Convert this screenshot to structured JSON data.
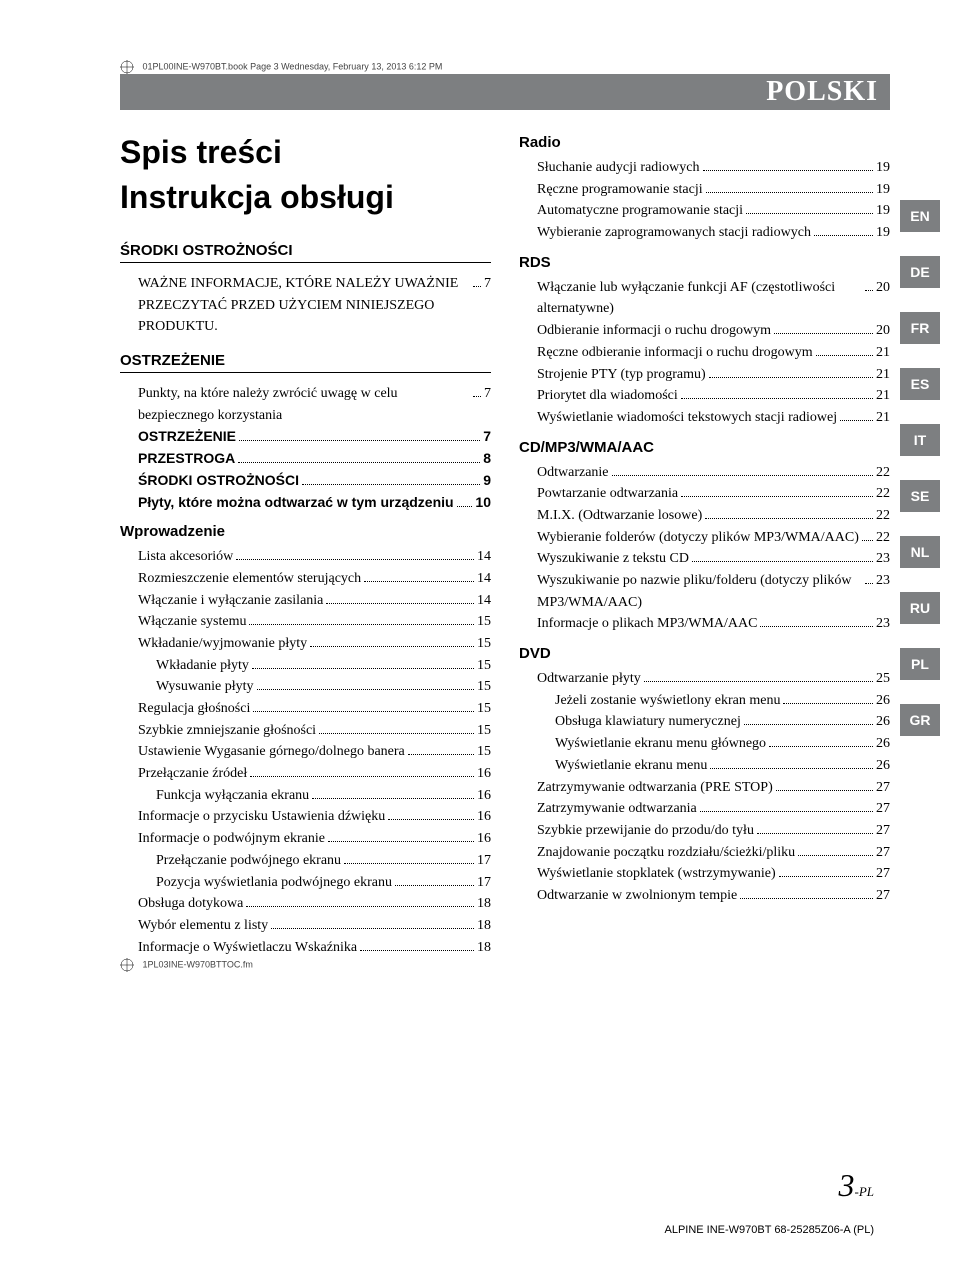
{
  "crop_header": "01PL00INE-W970BT.book  Page 3  Wednesday, February 13, 2013  6:12 PM",
  "crop_footer": "1PL03INE-W970BTTOC.fm",
  "lang_title": "POLSKI",
  "title_line1": "Spis treści",
  "title_line2": "Instrukcja obsługi",
  "page_number": "3",
  "page_suffix": "-PL",
  "footer_id": "ALPINE INE-W970BT 68-25285Z06-A (PL)",
  "lang_tabs": [
    "EN",
    "DE",
    "FR",
    "ES",
    "IT",
    "SE",
    "NL",
    "RU",
    "PL",
    "GR"
  ],
  "left": {
    "s1": {
      "header": "ŚRODKI OSTROŻNOŚCI",
      "note": "WAŻNE INFORMACJE, KTÓRE NALEŻY UWAŻNIE PRZECZYTAĆ PRZED UŻYCIEM NINIEJSZEGO PRODUKTU.",
      "note_pg": "7"
    },
    "s2": {
      "header": "OSTRZEŻENIE",
      "items": [
        {
          "lbl": "Punkty, na które należy zwrócić uwagę w celu bezpiecznego korzystania",
          "pg": "7",
          "indent": 0,
          "bold": false
        },
        {
          "lbl": "OSTRZEŻENIE",
          "pg": "7",
          "indent": 0,
          "bold": true
        },
        {
          "lbl": "PRZESTROGA",
          "pg": "8",
          "indent": 0,
          "bold": true
        },
        {
          "lbl": "ŚRODKI OSTROŻNOŚCI",
          "pg": "9",
          "indent": 0,
          "bold": true
        },
        {
          "lbl": "Płyty, które można odtwarzać w tym urządzeniu",
          "pg": "10",
          "indent": 0,
          "bold": true
        }
      ]
    },
    "s3": {
      "header": "Wprowadzenie",
      "items": [
        {
          "lbl": "Lista akcesoriów",
          "pg": "14",
          "indent": 0
        },
        {
          "lbl": "Rozmieszczenie elementów sterujących",
          "pg": "14",
          "indent": 0
        },
        {
          "lbl": "Włączanie i wyłączanie zasilania",
          "pg": "14",
          "indent": 0
        },
        {
          "lbl": "Włączanie systemu",
          "pg": "15",
          "indent": 0
        },
        {
          "lbl": "Wkładanie/wyjmowanie płyty",
          "pg": "15",
          "indent": 0
        },
        {
          "lbl": "Wkładanie płyty",
          "pg": "15",
          "indent": 1
        },
        {
          "lbl": "Wysuwanie płyty",
          "pg": "15",
          "indent": 1
        },
        {
          "lbl": "Regulacja głośności",
          "pg": "15",
          "indent": 0
        },
        {
          "lbl": "Szybkie zmniejszanie głośności",
          "pg": "15",
          "indent": 0
        },
        {
          "lbl": "Ustawienie Wygasanie górnego/dolnego banera",
          "pg": "15",
          "indent": 0
        },
        {
          "lbl": "Przełączanie źródeł",
          "pg": "16",
          "indent": 0
        },
        {
          "lbl": "Funkcja wyłączania ekranu",
          "pg": "16",
          "indent": 1
        },
        {
          "lbl": "Informacje o przycisku Ustawienia dźwięku",
          "pg": "16",
          "indent": 0
        },
        {
          "lbl": "Informacje o podwójnym ekranie",
          "pg": "16",
          "indent": 0
        },
        {
          "lbl": "Przełączanie podwójnego ekranu",
          "pg": "17",
          "indent": 1
        },
        {
          "lbl": "Pozycja wyświetlania podwójnego ekranu",
          "pg": "17",
          "indent": 1
        },
        {
          "lbl": "Obsługa dotykowa",
          "pg": "18",
          "indent": 0
        },
        {
          "lbl": "Wybór elementu z listy",
          "pg": "18",
          "indent": 0
        },
        {
          "lbl": "Informacje o Wyświetlaczu Wskaźnika",
          "pg": "18",
          "indent": 0
        }
      ]
    }
  },
  "right": {
    "s1": {
      "header": "Radio",
      "items": [
        {
          "lbl": "Słuchanie audycji radiowych",
          "pg": "19",
          "indent": 0
        },
        {
          "lbl": "Ręczne programowanie stacji",
          "pg": "19",
          "indent": 0
        },
        {
          "lbl": "Automatyczne programowanie stacji",
          "pg": "19",
          "indent": 0
        },
        {
          "lbl": "Wybieranie zaprogramowanych stacji radiowych",
          "pg": "19",
          "indent": 0
        }
      ]
    },
    "s2": {
      "header": "RDS",
      "items": [
        {
          "lbl": "Włączanie lub wyłączanie funkcji AF (częstotliwości alternatywne)",
          "pg": "20",
          "indent": 0
        },
        {
          "lbl": "Odbieranie informacji o ruchu drogowym",
          "pg": "20",
          "indent": 0
        },
        {
          "lbl": "Ręczne odbieranie informacji o ruchu drogowym",
          "pg": "21",
          "indent": 0
        },
        {
          "lbl": "Strojenie PTY (typ programu)",
          "pg": "21",
          "indent": 0
        },
        {
          "lbl": "Priorytet dla wiadomości",
          "pg": "21",
          "indent": 0
        },
        {
          "lbl": "Wyświetlanie wiadomości tekstowych stacji radiowej",
          "pg": "21",
          "indent": 0
        }
      ]
    },
    "s3": {
      "header": "CD/MP3/WMA/AAC",
      "items": [
        {
          "lbl": "Odtwarzanie",
          "pg": "22",
          "indent": 0
        },
        {
          "lbl": "Powtarzanie odtwarzania",
          "pg": "22",
          "indent": 0
        },
        {
          "lbl": "M.I.X. (Odtwarzanie losowe)",
          "pg": "22",
          "indent": 0
        },
        {
          "lbl": "Wybieranie folderów (dotyczy plików MP3/WMA/AAC)",
          "pg": "22",
          "indent": 0
        },
        {
          "lbl": "Wyszukiwanie z tekstu CD",
          "pg": "23",
          "indent": 0
        },
        {
          "lbl": "Wyszukiwanie po nazwie pliku/folderu (dotyczy plików MP3/WMA/AAC)",
          "pg": "23",
          "indent": 0
        },
        {
          "lbl": "Informacje o plikach MP3/WMA/AAC",
          "pg": "23",
          "indent": 0
        }
      ]
    },
    "s4": {
      "header": "DVD",
      "items": [
        {
          "lbl": "Odtwarzanie płyty",
          "pg": "25",
          "indent": 0
        },
        {
          "lbl": "Jeżeli zostanie wyświetlony ekran menu",
          "pg": "26",
          "indent": 1
        },
        {
          "lbl": "Obsługa klawiatury numerycznej",
          "pg": "26",
          "indent": 1
        },
        {
          "lbl": "Wyświetlanie ekranu menu głównego",
          "pg": "26",
          "indent": 1
        },
        {
          "lbl": "Wyświetlanie ekranu menu",
          "pg": "26",
          "indent": 1
        },
        {
          "lbl": "Zatrzymywanie odtwarzania (PRE STOP)",
          "pg": "27",
          "indent": 0
        },
        {
          "lbl": "Zatrzymywanie odtwarzania",
          "pg": "27",
          "indent": 0
        },
        {
          "lbl": "Szybkie przewijanie do przodu/do tyłu",
          "pg": "27",
          "indent": 0
        },
        {
          "lbl": "Znajdowanie początku rozdziału/ścieżki/pliku",
          "pg": "27",
          "indent": 0
        },
        {
          "lbl": "Wyświetlanie stopklatek (wstrzymywanie)",
          "pg": "27",
          "indent": 0
        },
        {
          "lbl": "Odtwarzanie w zwolnionym tempie",
          "pg": "27",
          "indent": 0
        }
      ]
    }
  }
}
